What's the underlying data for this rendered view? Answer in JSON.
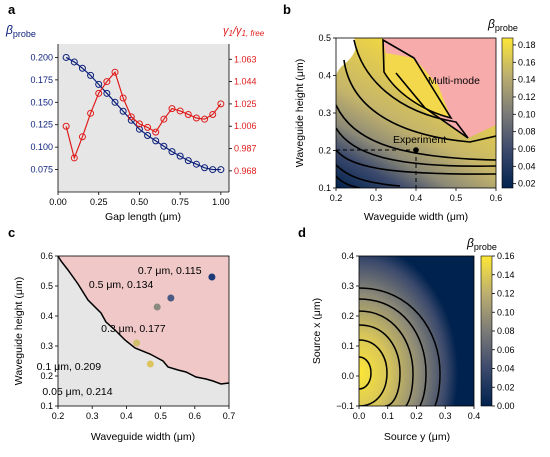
{
  "chart_data": [
    {
      "panel": "a",
      "type": "line",
      "xlabel": "Gap length (μm)",
      "ylabel_left": "β_probe",
      "ylabel_right": "γ1/γ1, free",
      "xlim": [
        0,
        1.05
      ],
      "ylim_left": [
        0.05,
        0.215
      ],
      "ylim_right": [
        0.95,
        1.076
      ],
      "xticks": [
        "0.00",
        "0.25",
        "0.50",
        "0.75",
        "1.00"
      ],
      "yticks_left": [
        "0.075",
        "0.100",
        "0.125",
        "0.150",
        "0.175",
        "0.200"
      ],
      "yticks_right": [
        "0.968",
        "0.987",
        "1.006",
        "1.025",
        "1.044",
        "1.063"
      ],
      "grid": false,
      "colors": {
        "left": "#0b1f7a",
        "right": "#e01b1b"
      },
      "series": [
        {
          "axis": "left",
          "x": [
            0.05,
            0.1,
            0.15,
            0.2,
            0.25,
            0.3,
            0.35,
            0.4,
            0.45,
            0.5,
            0.55,
            0.6,
            0.65,
            0.7,
            0.75,
            0.8,
            0.85,
            0.9,
            0.95,
            1.0
          ],
          "values": [
            0.2,
            0.195,
            0.188,
            0.18,
            0.17,
            0.16,
            0.15,
            0.14,
            0.13,
            0.12,
            0.113,
            0.107,
            0.101,
            0.095,
            0.09,
            0.085,
            0.081,
            0.077,
            0.075,
            0.075
          ]
        },
        {
          "axis": "right",
          "x": [
            0.05,
            0.1,
            0.15,
            0.2,
            0.25,
            0.3,
            0.35,
            0.4,
            0.45,
            0.5,
            0.55,
            0.6,
            0.65,
            0.7,
            0.75,
            0.8,
            0.85,
            0.9,
            0.95,
            1.0
          ],
          "values": [
            1.006,
            0.979,
            0.997,
            1.017,
            1.034,
            1.044,
            1.052,
            1.03,
            1.014,
            1.008,
            1.005,
            1.001,
            1.012,
            1.021,
            1.019,
            1.016,
            1.013,
            1.012,
            1.016,
            1.025
          ]
        }
      ]
    },
    {
      "panel": "b",
      "type": "heatmap",
      "xlabel": "Waveguide width (μm)",
      "ylabel": "Waveguide height (μm)",
      "colorbar_label": "β_probe",
      "xlim": [
        0.2,
        0.6
      ],
      "ylim": [
        0.1,
        0.5
      ],
      "xticks": [
        "0.2",
        "0.3",
        "0.4",
        "0.5",
        "0.6"
      ],
      "yticks": [
        "0.1",
        "0.2",
        "0.3",
        "0.4",
        "0.5"
      ],
      "colorbar_ticks": [
        "0.02",
        "0.04",
        "0.06",
        "0.08",
        "0.10",
        "0.12",
        "0.14",
        "0.16",
        "0.18"
      ],
      "region_label": "Multi-mode",
      "marker": {
        "label": "Experiment",
        "x": 0.4,
        "y": 0.2
      }
    },
    {
      "panel": "c",
      "type": "scatter",
      "xlabel": "Waveguide width (μm)",
      "ylabel": "Waveguide height (μm)",
      "xlim": [
        0.2,
        0.7
      ],
      "ylim": [
        0.1,
        0.6
      ],
      "xticks": [
        "0.2",
        "0.3",
        "0.4",
        "0.5",
        "0.6",
        "0.7"
      ],
      "yticks": [
        "0.1",
        "0.2",
        "0.3",
        "0.4",
        "0.5",
        "0.6"
      ],
      "points": [
        {
          "x": 0.65,
          "y": 0.53,
          "label": "0.7 μm, 0.115",
          "color": "#1d3a78"
        },
        {
          "x": 0.53,
          "y": 0.46,
          "label": "0.5 μm, 0.134",
          "color": "#4a5a82"
        },
        {
          "x": 0.49,
          "y": 0.43,
          "label": "0.3 μm, 0.177",
          "color": "#8a8a80"
        },
        {
          "x": 0.43,
          "y": 0.31,
          "label": "0.1 μm, 0.209",
          "color": "#cfbe6a"
        },
        {
          "x": 0.47,
          "y": 0.24,
          "label": "0.05 μm, 0.214",
          "color": "#dcc55f"
        }
      ]
    },
    {
      "panel": "d",
      "type": "heatmap",
      "xlabel": "Source y (μm)",
      "ylabel": "Source x (μm)",
      "colorbar_label": "β_probe",
      "xlim": [
        0,
        0.4
      ],
      "ylim": [
        -0.1,
        0.4
      ],
      "xticks": [
        "0.0",
        "0.1",
        "0.2",
        "0.3",
        "0.4"
      ],
      "yticks": [
        "−0.1",
        "0.0",
        "0.1",
        "0.2",
        "0.3",
        "0.4"
      ],
      "colorbar_ticks": [
        "0.00",
        "0.02",
        "0.04",
        "0.06",
        "0.08",
        "0.10",
        "0.12",
        "0.14",
        "0.16"
      ]
    }
  ],
  "panels": [
    "a",
    "b",
    "c",
    "d"
  ]
}
